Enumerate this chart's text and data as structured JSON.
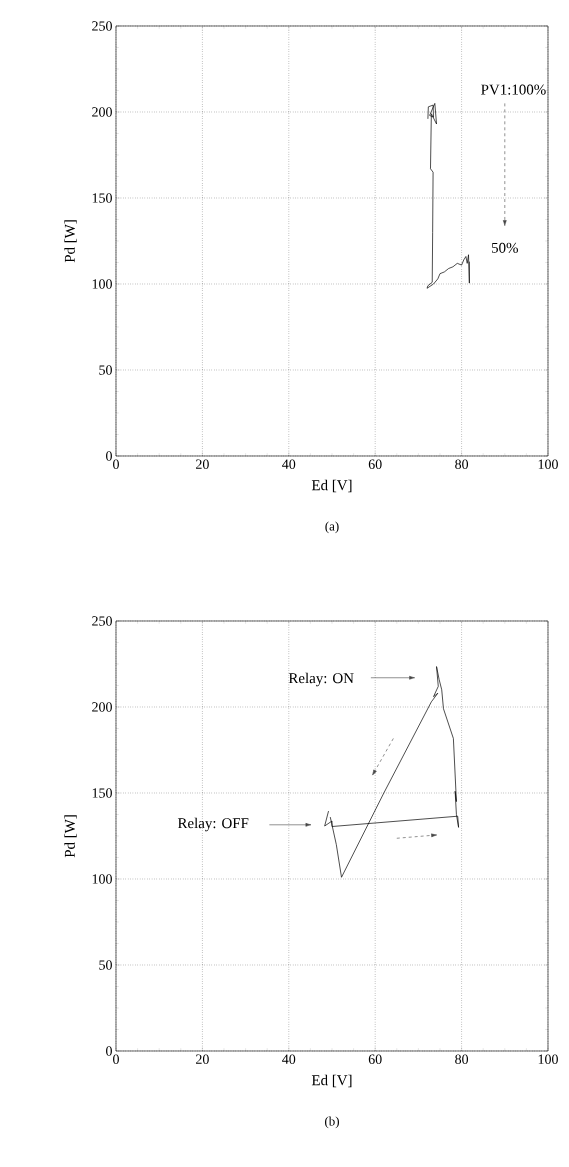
{
  "chart_data": [
    {
      "type": "line",
      "xlabel": "Ed [V]",
      "ylabel": "Pd [W]",
      "xlim": [
        0,
        100
      ],
      "ylim": [
        0,
        250
      ],
      "xticks": [
        0,
        20,
        40,
        60,
        80,
        100
      ],
      "yticks": [
        0,
        50,
        100,
        150,
        200,
        250
      ],
      "grid": true,
      "series": [
        {
          "color": "#000000",
          "x": [
            72.2,
            72.3,
            73.4,
            73.5,
            72.6,
            73.8,
            74.2,
            73.0,
            72.8,
            73.4,
            73.3,
            73.2,
            72.2,
            72.0,
            73.5,
            74.5,
            75,
            76,
            77,
            78,
            79,
            80,
            80.5,
            81,
            81.3,
            81.6,
            81.8,
            81.8
          ],
          "values": [
            196,
            203,
            204,
            197,
            198,
            205,
            193,
            199,
            167,
            165,
            130,
            101,
            99,
            97.5,
            100,
            103,
            106,
            107,
            109,
            110,
            112,
            111,
            114,
            116,
            112,
            117,
            100.5,
            113
          ]
        }
      ],
      "annotations": [
        "PV1:100%",
        "50%",
        "(a)"
      ]
    },
    {
      "type": "line",
      "xlabel": "Ed [V]",
      "ylabel": "Pd [W]",
      "xlim": [
        0,
        100
      ],
      "ylim": [
        0,
        250
      ],
      "xticks": [
        0,
        20,
        40,
        60,
        80,
        100
      ],
      "yticks": [
        0,
        50,
        100,
        150,
        200,
        250
      ],
      "grid": true,
      "series": [
        {
          "color": "#000000",
          "x": [
            49.2,
            48.3,
            50,
            50,
            79.1,
            79.3,
            78.8,
            78.5,
            78.8,
            78.1,
            75.8,
            75.4,
            74.8,
            74.2,
            74.6,
            73.5,
            74.5,
            73,
            62,
            52.2,
            51,
            49.6
          ],
          "values": [
            139.5,
            130.8,
            133.7,
            130.5,
            136.5,
            130,
            137.5,
            151,
            145,
            181.7,
            199,
            210,
            216,
            223.5,
            212,
            206,
            208,
            203,
            150,
            101,
            120,
            136
          ]
        }
      ],
      "annotations": [
        "Relay: ON",
        "Relay: OFF",
        "(b)"
      ]
    }
  ]
}
